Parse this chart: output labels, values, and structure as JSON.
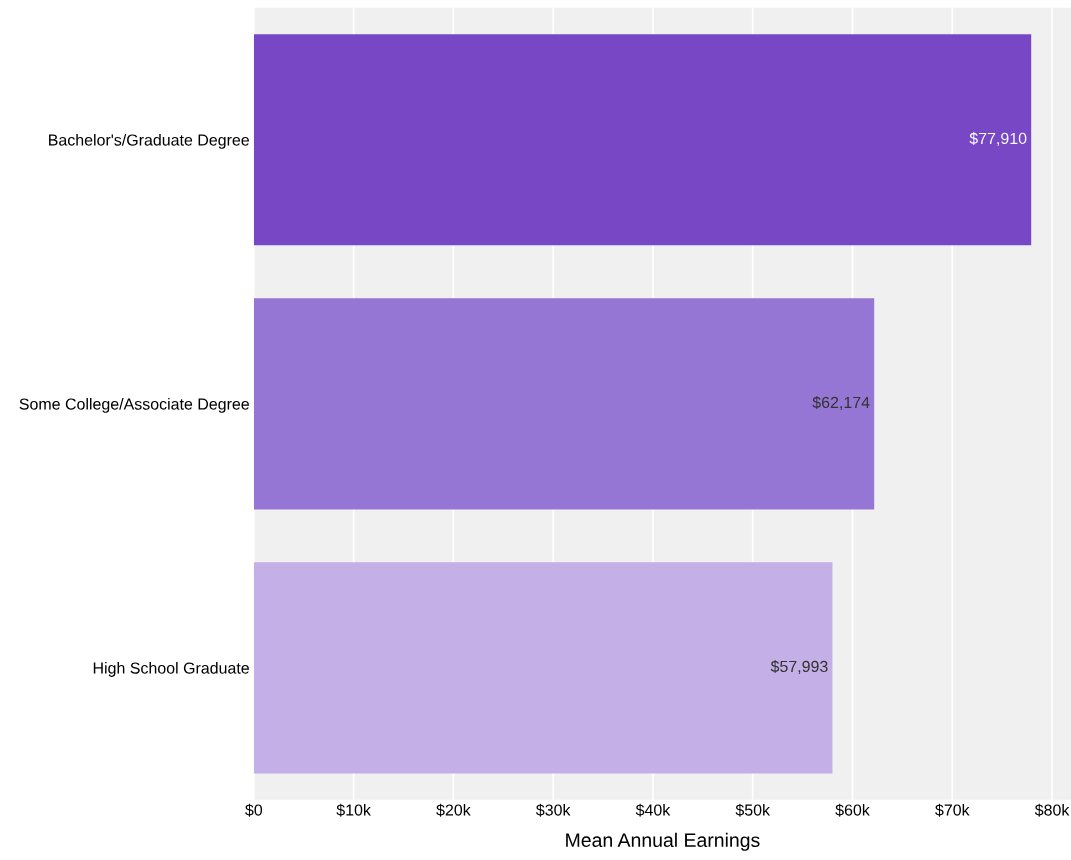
{
  "chart_data": {
    "type": "bar",
    "orientation": "horizontal",
    "xlabel": "Mean Annual Earnings",
    "categories": [
      "Bachelor's/Graduate Degree",
      "Some College/Associate Degree",
      "High School Graduate"
    ],
    "values": [
      77910,
      62174,
      57993
    ],
    "colors": [
      "#7847c6",
      "#9676d4",
      "#c4afe6"
    ],
    "value_labels": [
      "$77,910",
      "$62,174",
      "$57,993"
    ],
    "xlim": [
      0,
      81900
    ],
    "xticks": [
      {
        "value": 0,
        "label": "$0"
      },
      {
        "value": 10000,
        "label": "$10k"
      },
      {
        "value": 20000,
        "label": "$20k"
      },
      {
        "value": 30000,
        "label": "$30k"
      },
      {
        "value": 40000,
        "label": "$40k"
      },
      {
        "value": 50000,
        "label": "$50k"
      },
      {
        "value": 60000,
        "label": "$60k"
      },
      {
        "value": 70000,
        "label": "$70k"
      },
      {
        "value": 80000,
        "label": "$80k"
      }
    ],
    "grid": "x",
    "legend": false
  }
}
